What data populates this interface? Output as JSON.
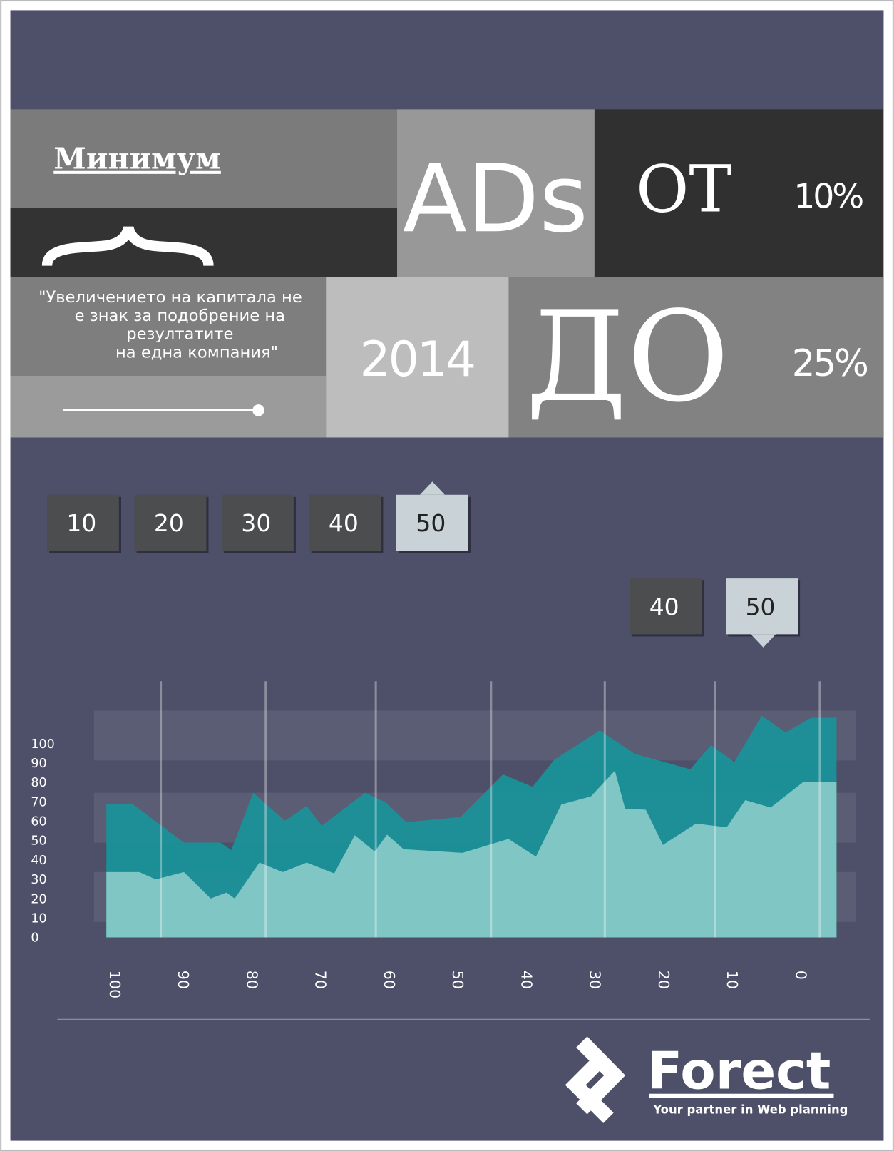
{
  "tiles": {
    "minimum": "Минимум",
    "ads": "ADs",
    "from": "ОТ",
    "from_value": "10%",
    "quote": [
      "\"Увеличението на капитала не",
      "е знак за подобрение на",
      "резултатите",
      "на една компания\""
    ],
    "year": "2014",
    "to": "ДО",
    "to_value": "25%"
  },
  "tabs_top": [
    "10",
    "20",
    "30",
    "40",
    "50"
  ],
  "tabs_bottom": [
    "40",
    "50"
  ],
  "logo": {
    "name": "Forect",
    "tagline": "Your partner in Web planning"
  },
  "chart_data": {
    "type": "area",
    "xlim": [
      102.9,
      -8.1
    ],
    "xticks": [
      100,
      90,
      80,
      70,
      60,
      50,
      40,
      30,
      20,
      10,
      0
    ],
    "ylim": [
      0,
      117
    ],
    "yticks": [
      0,
      10,
      20,
      30,
      40,
      50,
      60,
      70,
      80,
      90,
      100
    ],
    "series": [
      {
        "color": "#17959b",
        "x": [
          101.1,
          97.3,
          89.8,
          84.5,
          82.9,
          79.7,
          75.1,
          71.9,
          69.7,
          63.4,
          60.4,
          57.4,
          49.5,
          43.3,
          39.0,
          35.8,
          29.2,
          24.1,
          16.0,
          13.0,
          9.6,
          5.6,
          2.1,
          -1.6,
          -5.3
        ],
        "values": [
          68.9,
          68.9,
          48.9,
          48.9,
          45.1,
          74.6,
          60.2,
          67.8,
          57.6,
          74.6,
          69.7,
          59.5,
          62.1,
          84.1,
          77.7,
          91.7,
          106.8,
          94.7,
          86.7,
          99.2,
          90.5,
          114.4,
          105.7,
          113.3,
          113.3
        ]
      },
      {
        "color": "#85c9c6",
        "x": [
          101.1,
          96.3,
          93.9,
          89.8,
          85.9,
          83.6,
          82.4,
          78.8,
          75.4,
          71.9,
          67.9,
          64.9,
          62.0,
          60.2,
          57.8,
          49.2,
          42.5,
          38.5,
          34.8,
          30.5,
          27.0,
          25.5,
          22.5,
          20.0,
          15.2,
          10.7,
          8.0,
          4.3,
          -0.5,
          -5.3
        ],
        "values": [
          33.7,
          33.7,
          29.9,
          33.7,
          20.1,
          23.1,
          20.1,
          38.6,
          33.7,
          38.6,
          33.0,
          52.7,
          44.3,
          53.0,
          45.5,
          43.6,
          50.8,
          41.7,
          68.6,
          72.7,
          86.0,
          66.3,
          65.9,
          47.7,
          58.7,
          56.8,
          70.8,
          67.0,
          80.3,
          80.3
        ]
      }
    ]
  }
}
